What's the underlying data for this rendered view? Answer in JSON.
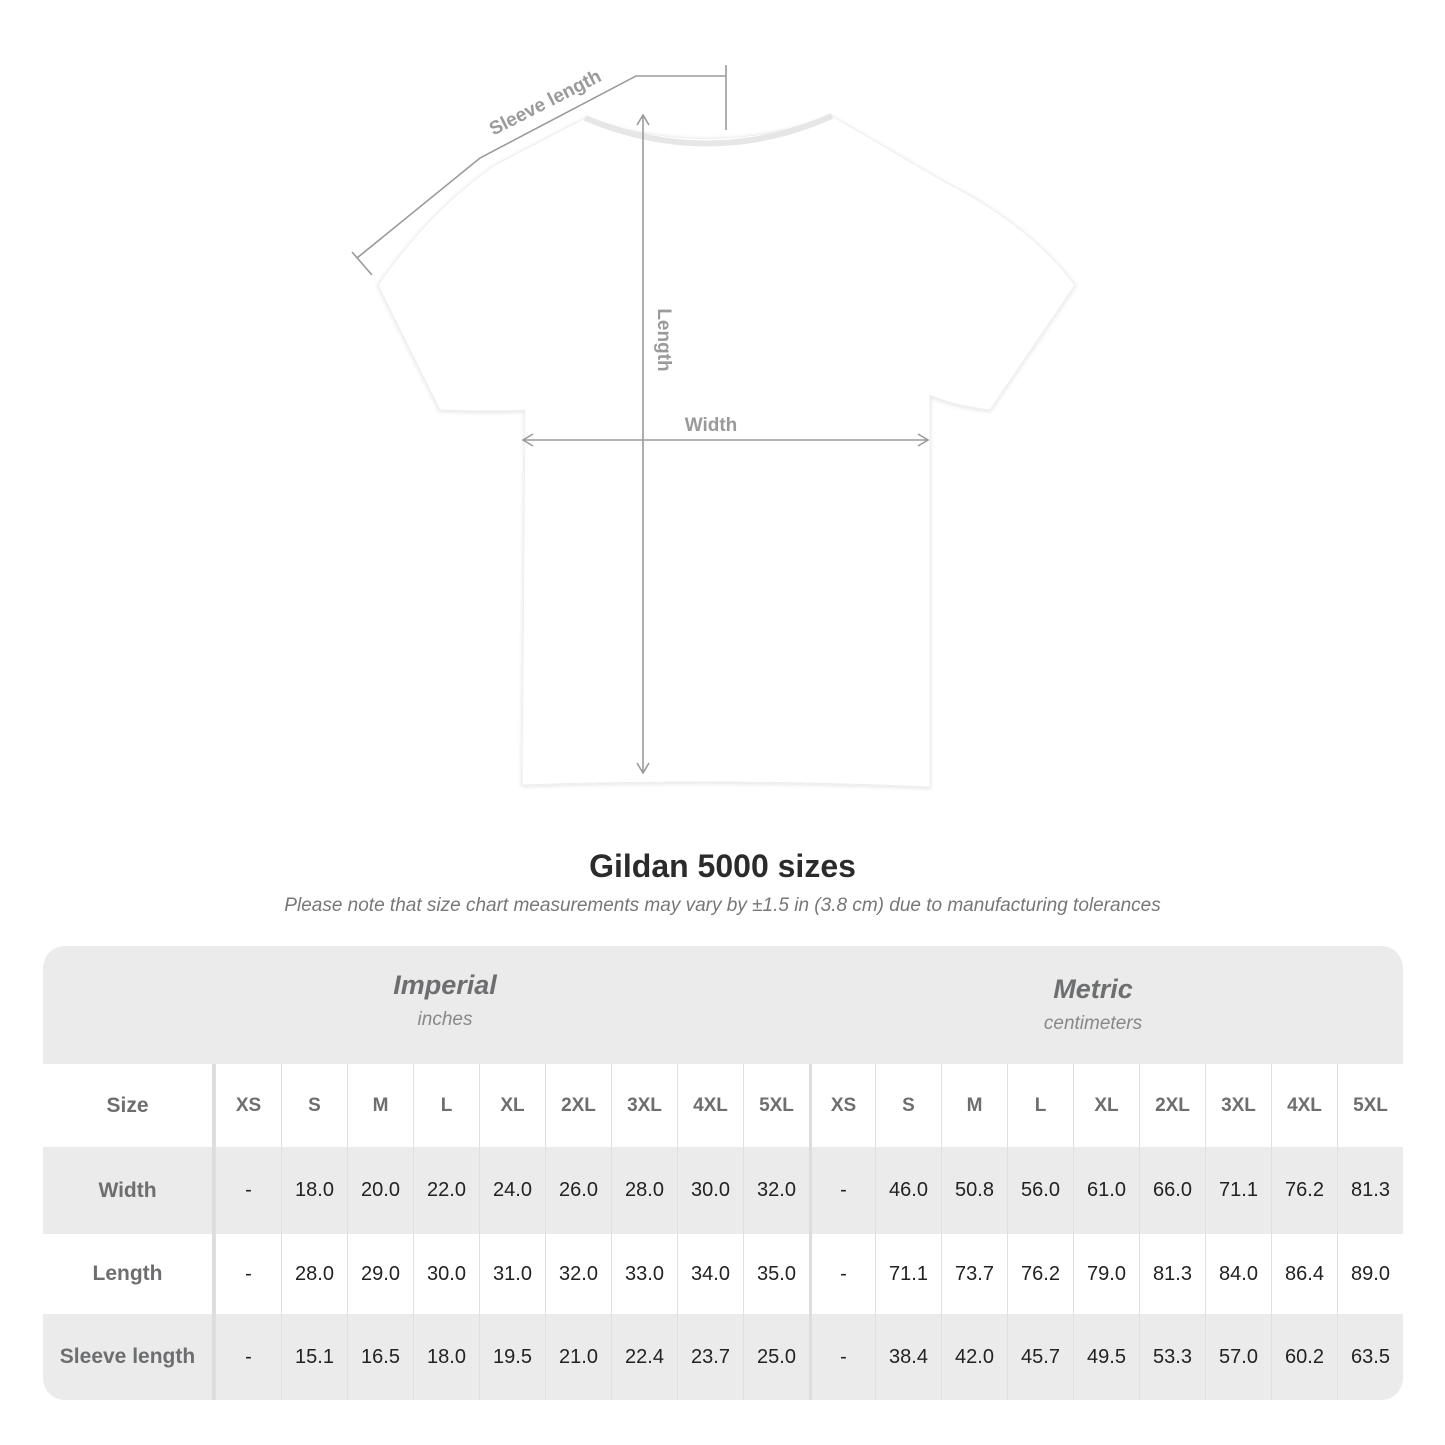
{
  "diagram": {
    "sleeve_label": "Sleeve length",
    "length_label": "Length",
    "width_label": "Width",
    "line_color": "#9a9a9a",
    "shirt_color": "#ffffff"
  },
  "title": "Gildan 5000 sizes",
  "note": "Please note that size chart measurements may vary by ±1.5 in (3.8 cm) due to manufacturing tolerances",
  "table": {
    "imperial": {
      "label": "Imperial",
      "unit": "inches"
    },
    "metric": {
      "label": "Metric",
      "unit": "centimeters"
    },
    "size_label": "Size",
    "sizes": [
      "XS",
      "S",
      "M",
      "L",
      "XL",
      "2XL",
      "3XL",
      "4XL",
      "5XL"
    ],
    "rows": [
      {
        "label": "Width",
        "imperial": [
          "-",
          "18.0",
          "20.0",
          "22.0",
          "24.0",
          "26.0",
          "28.0",
          "30.0",
          "32.0"
        ],
        "metric": [
          "-",
          "46.0",
          "50.8",
          "56.0",
          "61.0",
          "66.0",
          "71.1",
          "76.2",
          "81.3"
        ]
      },
      {
        "label": "Length",
        "imperial": [
          "-",
          "28.0",
          "29.0",
          "30.0",
          "31.0",
          "32.0",
          "33.0",
          "34.0",
          "35.0"
        ],
        "metric": [
          "-",
          "71.1",
          "73.7",
          "76.2",
          "79.0",
          "81.3",
          "84.0",
          "86.4",
          "89.0"
        ]
      },
      {
        "label": "Sleeve length",
        "imperial": [
          "-",
          "15.1",
          "16.5",
          "18.0",
          "19.5",
          "21.0",
          "22.4",
          "23.7",
          "25.0"
        ],
        "metric": [
          "-",
          "38.4",
          "42.0",
          "45.7",
          "49.5",
          "53.3",
          "57.0",
          "60.2",
          "63.5"
        ]
      }
    ]
  }
}
